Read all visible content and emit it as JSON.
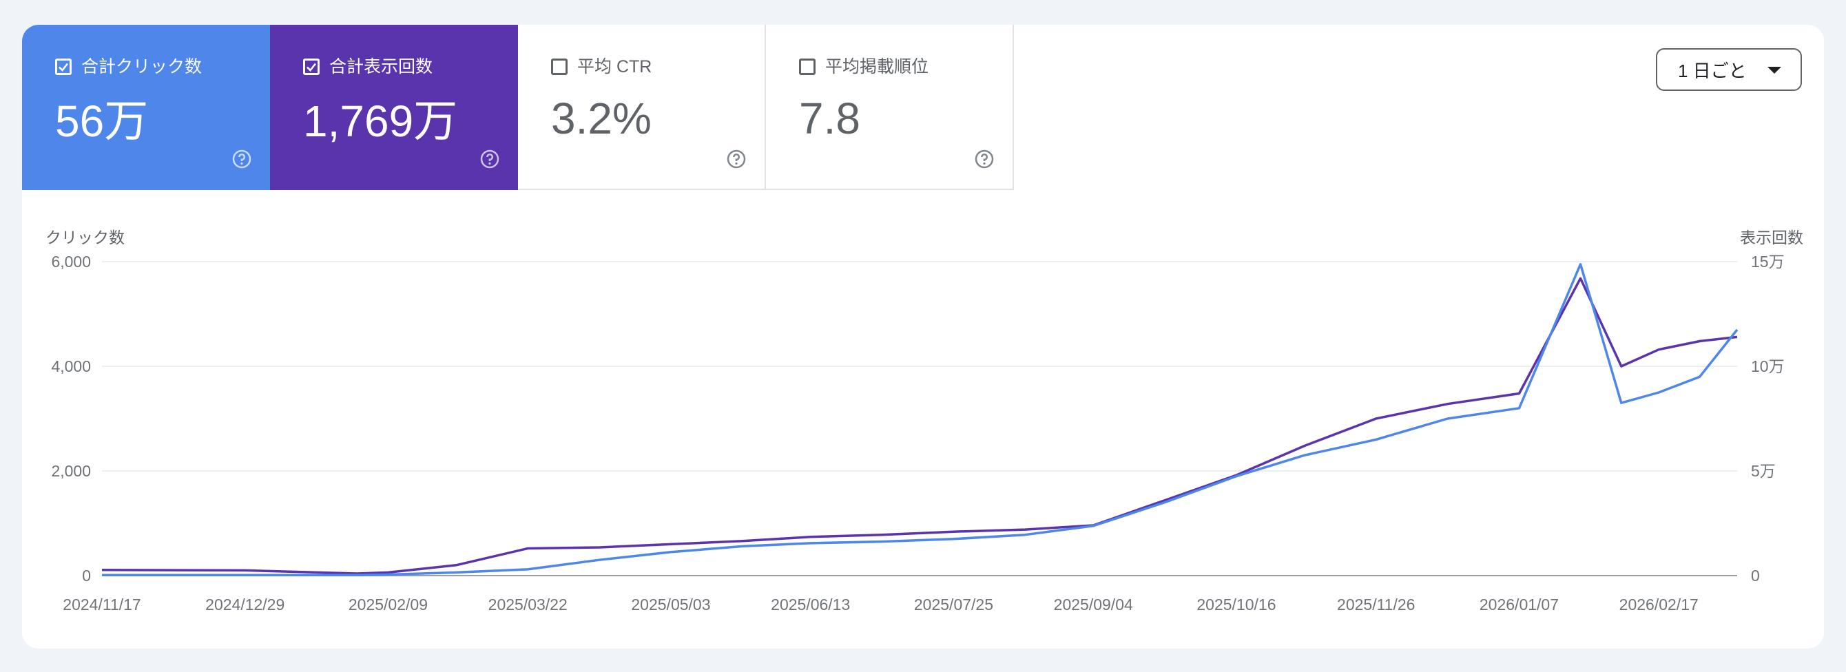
{
  "metrics": [
    {
      "label": "合計クリック数",
      "value": "56万",
      "checked": true,
      "color": "#4e86ea"
    },
    {
      "label": "合計表示回数",
      "value": "1,769万",
      "checked": true,
      "color": "#5a34ad"
    },
    {
      "label": "平均 CTR",
      "value": "3.2%",
      "checked": false,
      "color": "#ffffff"
    },
    {
      "label": "平均掲載順位",
      "value": "7.8",
      "checked": false,
      "color": "#ffffff"
    }
  ],
  "dropdown": {
    "label": "1 日ごと"
  },
  "icons": {
    "check": "checkbox-checked-icon",
    "help": "help-circle-icon",
    "caret": "caret-down-icon"
  },
  "chart_data": {
    "type": "line",
    "ylabel_left": "クリック数",
    "ylabel_right": "表示回数",
    "left_ticks": [
      "0",
      "2,000",
      "4,000",
      "6,000"
    ],
    "right_ticks": [
      "0",
      "5万",
      "10万",
      "15万"
    ],
    "ylim_left": [
      0,
      6000
    ],
    "ylim_right": [
      0,
      150000
    ],
    "x_ticks": [
      "2024/11/17",
      "2024/12/29",
      "2025/02/09",
      "2025/03/22",
      "2025/05/03",
      "2025/06/13",
      "2025/07/25",
      "2025/09/04",
      "2025/10/16",
      "2025/11/26",
      "2026/01/07",
      "2026/02/17"
    ],
    "x_range": [
      "2024/11/17",
      "2026/03/12"
    ],
    "grid": true,
    "series": [
      {
        "name": "合計クリック数",
        "axis": "left",
        "color": "#4e86ea",
        "x": [
          "2024/11/17",
          "2024/12/29",
          "2025/01/31",
          "2025/02/09",
          "2025/03/01",
          "2025/03/22",
          "2025/04/12",
          "2025/05/03",
          "2025/05/24",
          "2025/06/13",
          "2025/07/04",
          "2025/07/25",
          "2025/08/15",
          "2025/09/04",
          "2025/09/25",
          "2025/10/16",
          "2025/11/05",
          "2025/11/26",
          "2025/12/17",
          "2026/01/07",
          "2026/01/25",
          "2026/02/06",
          "2026/02/17",
          "2026/03/01",
          "2026/03/12"
        ],
        "values": [
          10,
          10,
          10,
          20,
          60,
          120,
          300,
          450,
          560,
          620,
          650,
          700,
          780,
          950,
          1400,
          1900,
          2300,
          2600,
          3000,
          3200,
          5950,
          3300,
          3500,
          3800,
          4700
        ]
      },
      {
        "name": "合計表示回数",
        "axis": "right",
        "color": "#5a34ad",
        "x": [
          "2024/11/17",
          "2024/12/29",
          "2025/01/31",
          "2025/02/09",
          "2025/03/01",
          "2025/03/22",
          "2025/04/12",
          "2025/05/03",
          "2025/05/24",
          "2025/06/13",
          "2025/07/04",
          "2025/07/25",
          "2025/08/15",
          "2025/09/04",
          "2025/09/25",
          "2025/10/16",
          "2025/11/05",
          "2025/11/26",
          "2025/12/17",
          "2026/01/07",
          "2026/01/25",
          "2026/02/06",
          "2026/02/17",
          "2026/03/01",
          "2026/03/12"
        ],
        "values": [
          2700,
          2500,
          1000,
          1500,
          5000,
          13000,
          13500,
          15000,
          16500,
          18500,
          19500,
          21000,
          22000,
          24000,
          36000,
          48000,
          62000,
          75000,
          82000,
          87000,
          142000,
          100000,
          108000,
          112000,
          114000
        ]
      }
    ]
  }
}
